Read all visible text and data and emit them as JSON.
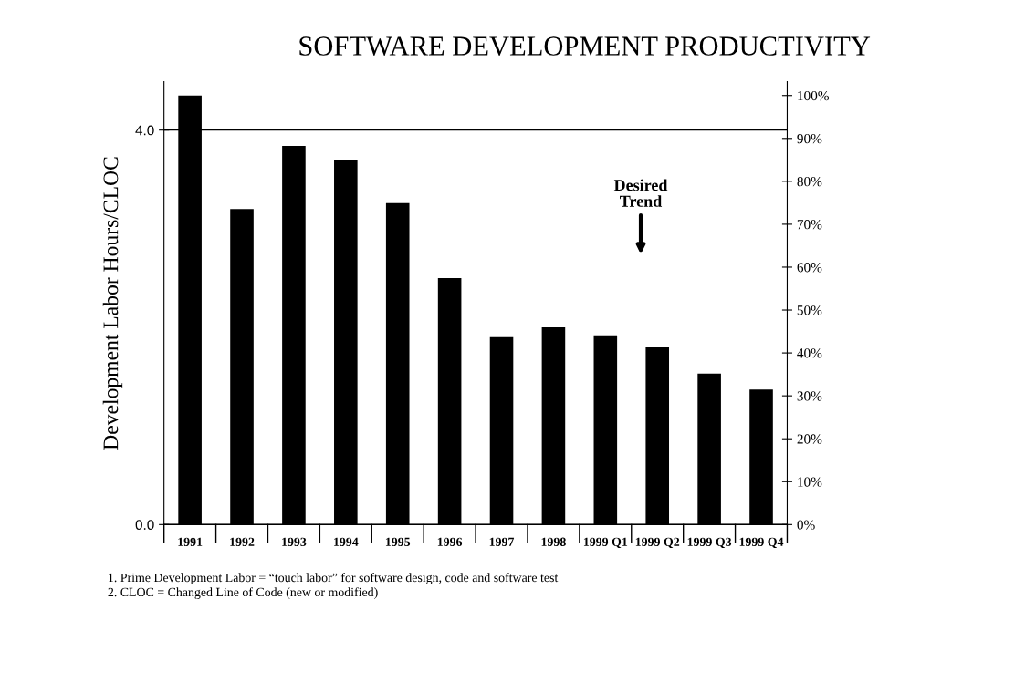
{
  "chart_data": {
    "type": "bar",
    "title": "SOFTWARE DEVELOPMENT PRODUCTIVITY",
    "ylabel": "Development Labor Hours/CLOC",
    "categories": [
      "1991",
      "1992",
      "1993",
      "1994",
      "1995",
      "1996",
      "1997",
      "1998",
      "1999 Q1",
      "1999 Q2",
      "1999 Q3",
      "1999 Q4"
    ],
    "values": [
      4.35,
      3.2,
      3.84,
      3.7,
      3.26,
      2.5,
      1.9,
      2.0,
      1.92,
      1.8,
      1.53,
      1.37
    ],
    "color": "#000000",
    "ylim": [
      0,
      4.49
    ],
    "yticks": [
      {
        "value": 0,
        "label": "0.0"
      },
      {
        "value": 4,
        "label": "4.0"
      }
    ],
    "y2lim": [
      0,
      103.2
    ],
    "y2ticks": [
      {
        "value": 0,
        "label": "0%"
      },
      {
        "value": 10,
        "label": "10%"
      },
      {
        "value": 20,
        "label": "20%"
      },
      {
        "value": 30,
        "label": "30%"
      },
      {
        "value": 40,
        "label": "40%"
      },
      {
        "value": 50,
        "label": "50%"
      },
      {
        "value": 60,
        "label": "60%"
      },
      {
        "value": 70,
        "label": "70%"
      },
      {
        "value": 80,
        "label": "80%"
      },
      {
        "value": 90,
        "label": "90%"
      },
      {
        "value": 100,
        "label": "100%"
      }
    ],
    "grid": "y",
    "annotations": [
      "Desired\nTrend",
      "1. Prime Development Labor = “touch labor” for software design, code and software test",
      "2. CLOC = Changed Line of Code (new or modified)"
    ]
  }
}
